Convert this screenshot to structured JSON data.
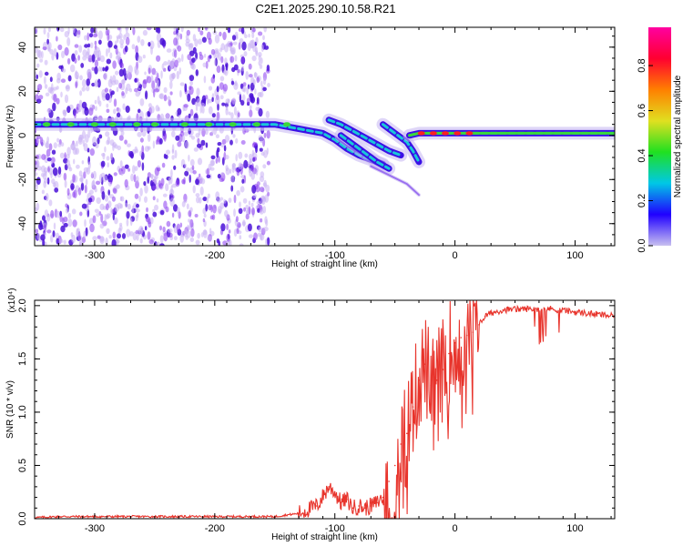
{
  "page": {
    "title": "C2E1.2025.290.10.58.R21"
  },
  "colors": {
    "ridge_low": "#3a10e6",
    "ridge_mid": "#19c8d8",
    "ridge_high": "#3ad83a",
    "peak": "#ff2020",
    "noise": "#8a3cf0",
    "snr_line": "#e8342c"
  },
  "chart_data": [
    {
      "id": "spectrogram",
      "type": "heatmap",
      "title": "",
      "xlabel": "Height of straight line (km)",
      "ylabel": "Frequency (Hz)",
      "xlim": [
        -350,
        133
      ],
      "ylim": [
        -50,
        49
      ],
      "xticks": [
        -300,
        -200,
        -100,
        0,
        100
      ],
      "yticks": [
        -40,
        -20,
        0,
        20,
        40
      ],
      "xtick_labels": [
        "-300",
        "-200",
        "-100",
        "0",
        "100"
      ],
      "ytick_labels": [
        "-40",
        "-20",
        "0",
        "20",
        "40"
      ],
      "noise_region": {
        "x_from": -350,
        "x_to": -155
      },
      "ridges": [
        {
          "name": "carrier",
          "points": [
            [
              -350,
              5
            ],
            [
              -250,
              5
            ],
            [
              -200,
              5
            ],
            [
              -150,
              5
            ],
            [
              -130,
              3
            ],
            [
              -110,
              1
            ],
            [
              -100,
              -2
            ],
            [
              -90,
              -6
            ],
            [
              -80,
              -9
            ],
            [
              -70,
              -11
            ],
            [
              -60,
              -13
            ]
          ]
        },
        {
          "name": "branch-upper",
          "points": [
            [
              -105,
              7
            ],
            [
              -95,
              5
            ],
            [
              -85,
              2
            ],
            [
              -75,
              -1
            ],
            [
              -65,
              -4
            ],
            [
              -55,
              -7
            ],
            [
              -45,
              -9
            ]
          ]
        },
        {
          "name": "branch-lower",
          "points": [
            [
              -95,
              0
            ],
            [
              -85,
              -4
            ],
            [
              -75,
              -8
            ],
            [
              -65,
              -12
            ],
            [
              -55,
              -15
            ]
          ]
        },
        {
          "name": "branch-tail",
          "points": [
            [
              -60,
              5
            ],
            [
              -50,
              1
            ],
            [
              -40,
              -3
            ],
            [
              -35,
              -7
            ],
            [
              -30,
              -12
            ]
          ]
        },
        {
          "name": "branch-faint",
          "points": [
            [
              -70,
              -14
            ],
            [
              -55,
              -18
            ],
            [
              -40,
              -22
            ],
            [
              -30,
              -27
            ]
          ]
        },
        {
          "name": "post-event",
          "points": [
            [
              -38,
              0
            ],
            [
              -30,
              1
            ],
            [
              -20,
              1
            ],
            [
              -5,
              1
            ],
            [
              10,
              1
            ],
            [
              40,
              1
            ],
            [
              80,
              1
            ],
            [
              133,
              1
            ]
          ]
        }
      ],
      "colorbar": {
        "label": "Normalized spectral amplitude",
        "range": [
          0,
          0.97
        ],
        "ticks": [
          0.0,
          0.2,
          0.4,
          0.6,
          0.8
        ],
        "tick_labels": [
          "0.0",
          "0.2",
          "0.4",
          "0.6",
          "0.8"
        ],
        "stops": [
          "#c8c0f0",
          "#2000ff",
          "#00c8e6",
          "#20e020",
          "#e0e020",
          "#ff8000",
          "#ff0030",
          "#ff00a0"
        ]
      }
    },
    {
      "id": "snr",
      "type": "line",
      "title": "",
      "xlabel": "Height of straight line (km)",
      "ylabel": "SNR (10 * v/v)",
      "multiplier_label": "(x10⁴)",
      "xlim": [
        -350,
        133
      ],
      "ylim": [
        0,
        2.05
      ],
      "xticks": [
        -300,
        -200,
        -100,
        0,
        100
      ],
      "yticks": [
        0.0,
        0.5,
        1.0,
        1.5,
        2.0
      ],
      "xtick_labels": [
        "-300",
        "-200",
        "-100",
        "0",
        "100"
      ],
      "ytick_labels": [
        "0.0",
        "0.5",
        "1.0",
        "1.5",
        "2.0"
      ],
      "series": [
        {
          "name": "SNR",
          "x": [
            -350,
            -330,
            -300,
            -250,
            -200,
            -150,
            -130,
            -115,
            -105,
            -100,
            -95,
            -90,
            -85,
            -80,
            -75,
            -70,
            -65,
            -60,
            -55,
            -50,
            -45,
            -40,
            -35,
            -30,
            -25,
            -20,
            -15,
            -10,
            -5,
            0,
            5,
            10,
            15,
            20,
            25,
            30,
            40,
            60,
            80,
            100,
            133
          ],
          "values": [
            0.01,
            0.02,
            0.02,
            0.02,
            0.02,
            0.02,
            0.05,
            0.12,
            0.3,
            0.25,
            0.15,
            0.18,
            0.1,
            0.12,
            0.1,
            0.12,
            0.15,
            0.2,
            0.35,
            0.5,
            0.7,
            0.8,
            1.05,
            1.3,
            1.45,
            1.25,
            1.3,
            1.4,
            1.55,
            1.65,
            1.7,
            1.72,
            1.75,
            1.82,
            1.9,
            1.93,
            1.96,
            1.97,
            1.97,
            1.94,
            1.9
          ]
        }
      ]
    }
  ]
}
